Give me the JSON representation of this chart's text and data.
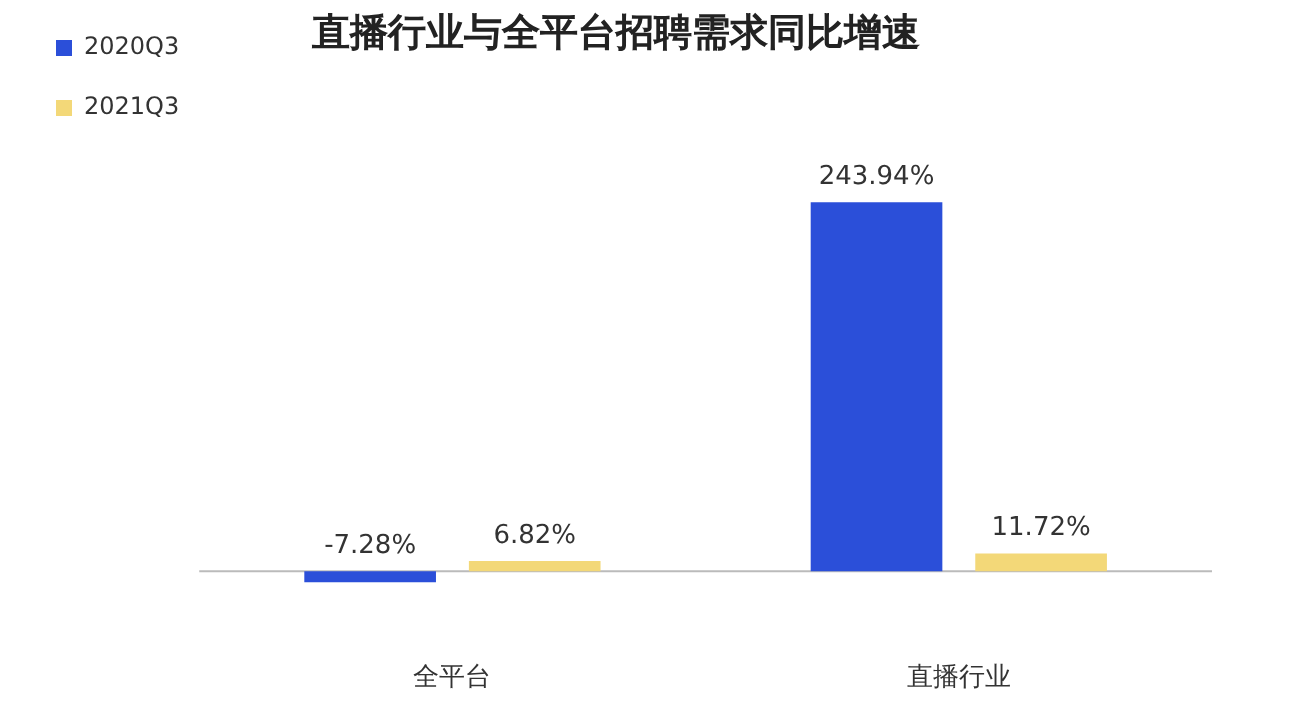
{
  "chart_data": {
    "type": "bar",
    "title": "直播行业与全平台招聘需求同比增速",
    "categories": [
      "全平台",
      "直播行业"
    ],
    "series": [
      {
        "name": "2020Q3",
        "color": "#2b4fd9",
        "values": [
          -7.28,
          243.94
        ],
        "value_labels": [
          "-7.28%",
          "243.94%"
        ]
      },
      {
        "name": "2021Q3",
        "color": "#f3d878",
        "values": [
          6.82,
          11.72
        ],
        "value_labels": [
          "6.82%",
          "11.72%"
        ]
      }
    ],
    "legend": "top left",
    "grid": false
  }
}
